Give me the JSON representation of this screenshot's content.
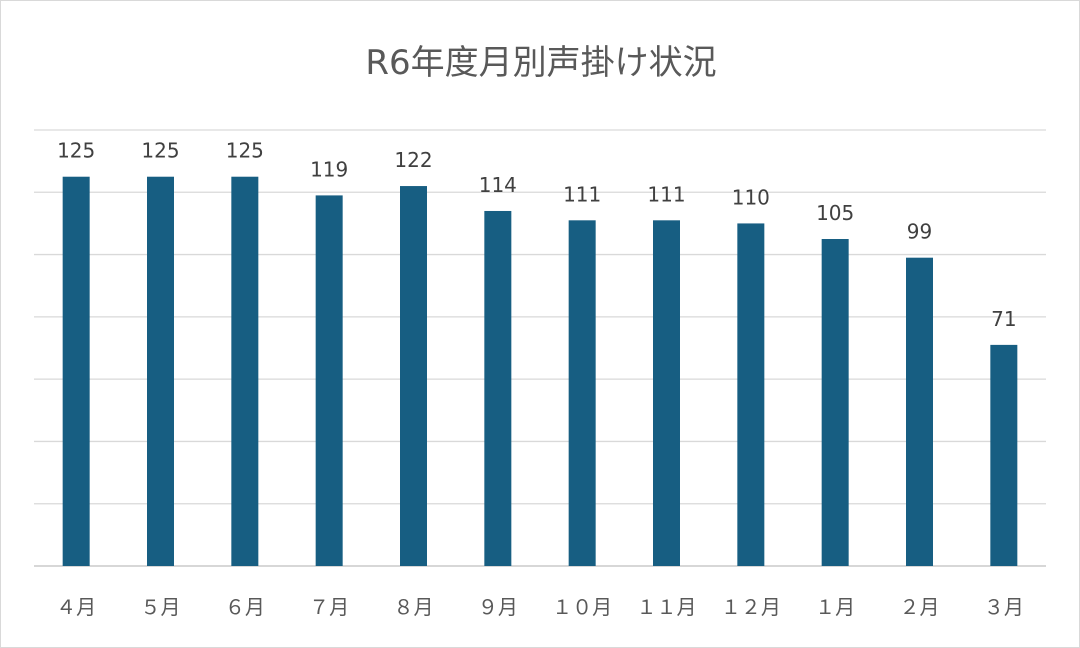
{
  "chart_data": {
    "type": "bar",
    "title": "R6年度月別声掛け状況",
    "xlabel": "",
    "ylabel": "",
    "categories": [
      "４月",
      "５月",
      "６月",
      "７月",
      "８月",
      "９月",
      "１０月",
      "１１月",
      "１２月",
      "１月",
      "２月",
      "３月"
    ],
    "values": [
      125,
      125,
      125,
      119,
      122,
      114,
      111,
      111,
      110,
      105,
      99,
      71
    ],
    "ylim": [
      0,
      140
    ],
    "grid": true,
    "legend": "none",
    "bar_color": "#175E82"
  }
}
